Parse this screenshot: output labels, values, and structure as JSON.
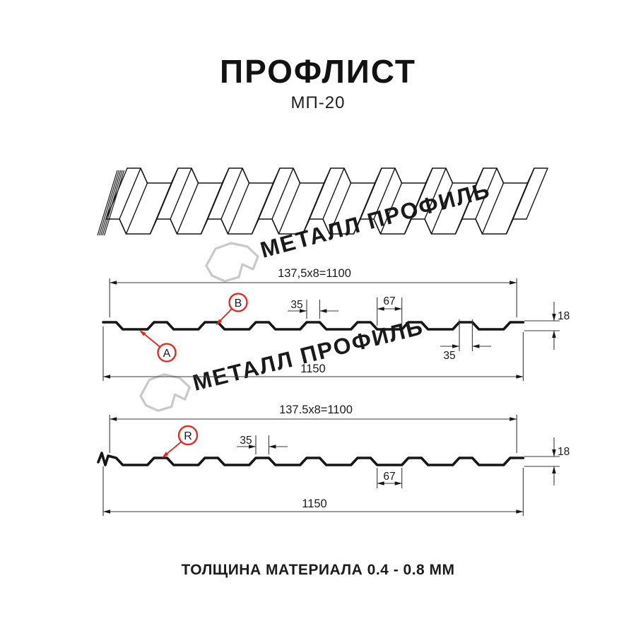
{
  "header": {
    "title": "ПРОФЛИСТ",
    "subtitle": "МП-20"
  },
  "watermark": {
    "brand": "МЕТАЛЛ ПРОФИЛЬ",
    "logo_icon": "metal-profil-logo-icon"
  },
  "diagram": {
    "section_top": {
      "coverage_width": "137,5x8=1100",
      "overall_width": "1150",
      "crest_width_top": "35",
      "valley_width": "67",
      "crest_width_bottom": "35",
      "height": "18",
      "callout_a": "A",
      "callout_b": "B"
    },
    "section_bottom": {
      "coverage_width": "137.5x8=1100",
      "overall_width": "1150",
      "crest_width": "35",
      "valley_width": "67",
      "height": "18",
      "callout_r": "R"
    },
    "colors": {
      "line": "#161616",
      "dim_line": "#3a3a3a",
      "callout_red": "#e8231d",
      "watermark_gray": "#c9c9c9"
    }
  },
  "footer": {
    "note": "ТОЛЩИНА МАТЕРИАЛА 0.4 - 0.8 ММ"
  }
}
